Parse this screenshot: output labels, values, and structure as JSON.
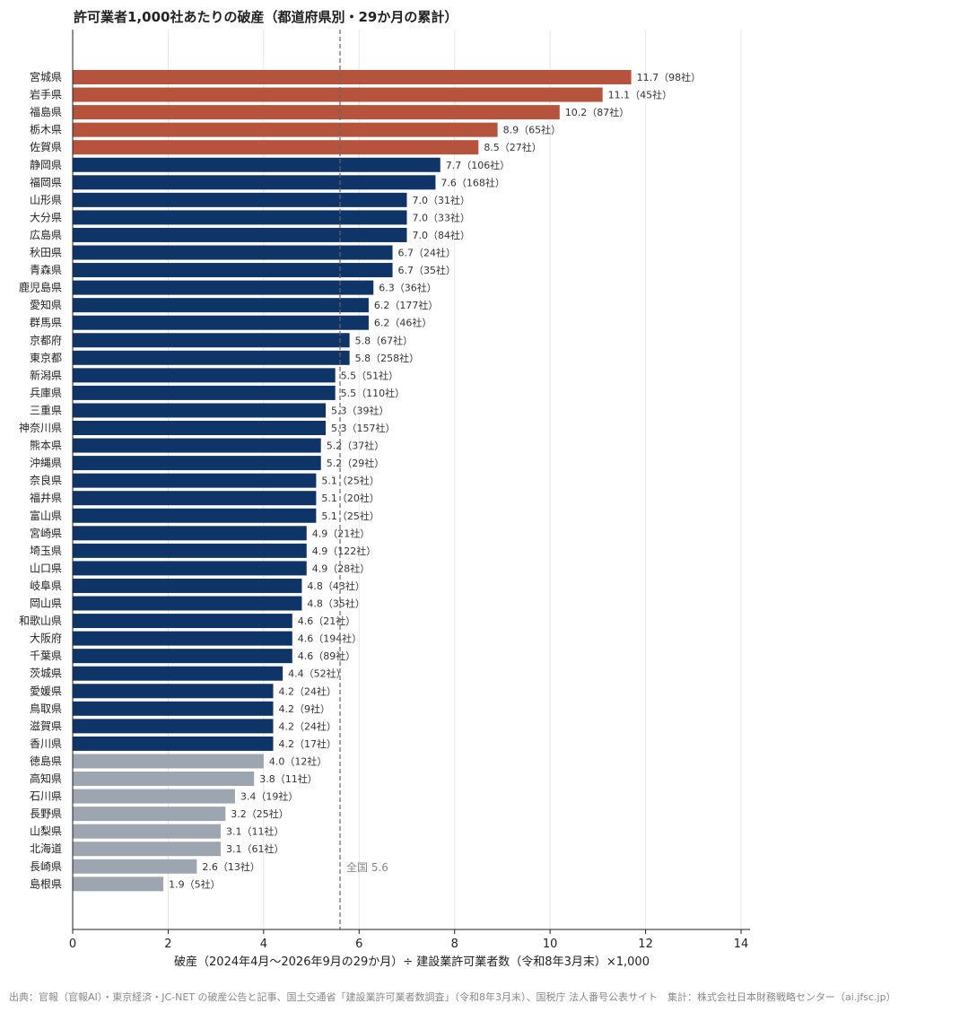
{
  "title": "許可業者1,000社あたりの破産（都道府県別・29か月の累計）",
  "source": "出典：官報（官報AI）・東京経済・JC-NET の破産公告と記事、国土交通省「建設業許可業者数調査」（令和8年3月末）、国税庁 法人番号公表サイト　集計：株式会社日本財務戦略センター（ai.jfsc.jp）",
  "colors": {
    "top5": "#b5533c",
    "middle": "#0f3467",
    "bottom": "#9ca5b0",
    "reference": "#666666"
  },
  "chart_data": {
    "type": "bar",
    "orientation": "horizontal",
    "xlabel": "破産（2024年4月～2026年9月の29か月）÷ 建設業許可業者数（令和8年3月末）×1,000",
    "xlim": [
      0,
      14
    ],
    "xticks": [
      0,
      2,
      4,
      6,
      8,
      10,
      12,
      14
    ],
    "grid": "vertical",
    "reference_line": {
      "value": 5.6,
      "label": "全国 5.6",
      "style": "dashed"
    },
    "bars": [
      {
        "label": "宮城県",
        "value": 11.7,
        "text": "11.7（98社）",
        "group": "top5"
      },
      {
        "label": "岩手県",
        "value": 11.1,
        "text": "11.1（45社）",
        "group": "top5"
      },
      {
        "label": "福島県",
        "value": 10.2,
        "text": "10.2（87社）",
        "group": "top5"
      },
      {
        "label": "栃木県",
        "value": 8.9,
        "text": "8.9（65社）",
        "group": "top5"
      },
      {
        "label": "佐賀県",
        "value": 8.5,
        "text": "8.5（27社）",
        "group": "top5"
      },
      {
        "label": "静岡県",
        "value": 7.7,
        "text": "7.7（106社）",
        "group": "middle"
      },
      {
        "label": "福岡県",
        "value": 7.6,
        "text": "7.6（168社）",
        "group": "middle"
      },
      {
        "label": "山形県",
        "value": 7.0,
        "text": "7.0（31社）",
        "group": "middle"
      },
      {
        "label": "大分県",
        "value": 7.0,
        "text": "7.0（33社）",
        "group": "middle"
      },
      {
        "label": "広島県",
        "value": 7.0,
        "text": "7.0（84社）",
        "group": "middle"
      },
      {
        "label": "秋田県",
        "value": 6.7,
        "text": "6.7（24社）",
        "group": "middle"
      },
      {
        "label": "青森県",
        "value": 6.7,
        "text": "6.7（35社）",
        "group": "middle"
      },
      {
        "label": "鹿児島県",
        "value": 6.3,
        "text": "6.3（36社）",
        "group": "middle"
      },
      {
        "label": "愛知県",
        "value": 6.2,
        "text": "6.2（177社）",
        "group": "middle"
      },
      {
        "label": "群馬県",
        "value": 6.2,
        "text": "6.2（46社）",
        "group": "middle"
      },
      {
        "label": "京都府",
        "value": 5.8,
        "text": "5.8（67社）",
        "group": "middle"
      },
      {
        "label": "東京都",
        "value": 5.8,
        "text": "5.8（258社）",
        "group": "middle"
      },
      {
        "label": "新潟県",
        "value": 5.5,
        "text": "5.5（51社）",
        "group": "middle"
      },
      {
        "label": "兵庫県",
        "value": 5.5,
        "text": "5.5（110社）",
        "group": "middle"
      },
      {
        "label": "三重県",
        "value": 5.3,
        "text": "5.3（39社）",
        "group": "middle"
      },
      {
        "label": "神奈川県",
        "value": 5.3,
        "text": "5.3（157社）",
        "group": "middle"
      },
      {
        "label": "熊本県",
        "value": 5.2,
        "text": "5.2（37社）",
        "group": "middle"
      },
      {
        "label": "沖縄県",
        "value": 5.2,
        "text": "5.2（29社）",
        "group": "middle"
      },
      {
        "label": "奈良県",
        "value": 5.1,
        "text": "5.1（25社）",
        "group": "middle"
      },
      {
        "label": "福井県",
        "value": 5.1,
        "text": "5.1（20社）",
        "group": "middle"
      },
      {
        "label": "富山県",
        "value": 5.1,
        "text": "5.1（25社）",
        "group": "middle"
      },
      {
        "label": "宮崎県",
        "value": 4.9,
        "text": "4.9（21社）",
        "group": "middle"
      },
      {
        "label": "埼玉県",
        "value": 4.9,
        "text": "4.9（122社）",
        "group": "middle"
      },
      {
        "label": "山口県",
        "value": 4.9,
        "text": "4.9（28社）",
        "group": "middle"
      },
      {
        "label": "岐阜県",
        "value": 4.8,
        "text": "4.8（43社）",
        "group": "middle"
      },
      {
        "label": "岡山県",
        "value": 4.8,
        "text": "4.8（35社）",
        "group": "middle"
      },
      {
        "label": "和歌山県",
        "value": 4.6,
        "text": "4.6（21社）",
        "group": "middle"
      },
      {
        "label": "大阪府",
        "value": 4.6,
        "text": "4.6（194社）",
        "group": "middle"
      },
      {
        "label": "千葉県",
        "value": 4.6,
        "text": "4.6（89社）",
        "group": "middle"
      },
      {
        "label": "茨城県",
        "value": 4.4,
        "text": "4.4（52社）",
        "group": "middle"
      },
      {
        "label": "愛媛県",
        "value": 4.2,
        "text": "4.2（24社）",
        "group": "middle"
      },
      {
        "label": "鳥取県",
        "value": 4.2,
        "text": "4.2（9社）",
        "group": "middle"
      },
      {
        "label": "滋賀県",
        "value": 4.2,
        "text": "4.2（24社）",
        "group": "middle"
      },
      {
        "label": "香川県",
        "value": 4.2,
        "text": "4.2（17社）",
        "group": "middle"
      },
      {
        "label": "徳島県",
        "value": 4.0,
        "text": "4.0（12社）",
        "group": "bottom"
      },
      {
        "label": "高知県",
        "value": 3.8,
        "text": "3.8（11社）",
        "group": "bottom"
      },
      {
        "label": "石川県",
        "value": 3.4,
        "text": "3.4（19社）",
        "group": "bottom"
      },
      {
        "label": "長野県",
        "value": 3.2,
        "text": "3.2（25社）",
        "group": "bottom"
      },
      {
        "label": "山梨県",
        "value": 3.1,
        "text": "3.1（11社）",
        "group": "bottom"
      },
      {
        "label": "北海道",
        "value": 3.1,
        "text": "3.1（61社）",
        "group": "bottom"
      },
      {
        "label": "長崎県",
        "value": 2.6,
        "text": "2.6（13社）",
        "group": "bottom"
      },
      {
        "label": "島根県",
        "value": 1.9,
        "text": "1.9（5社）",
        "group": "bottom"
      }
    ]
  }
}
